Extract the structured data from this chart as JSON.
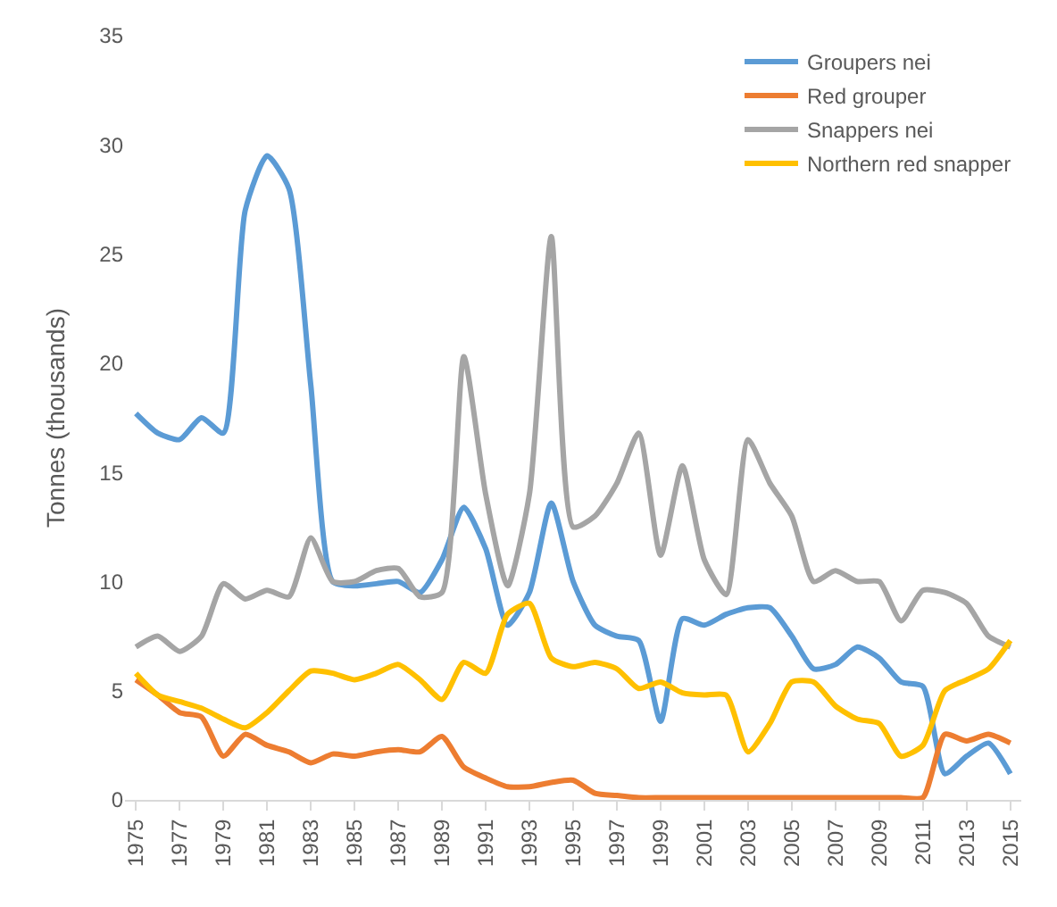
{
  "chart_data": {
    "type": "line",
    "ylabel": "Tonnes (thousands)",
    "x": [
      1975,
      1976,
      1977,
      1978,
      1979,
      1980,
      1981,
      1982,
      1983,
      1984,
      1985,
      1986,
      1987,
      1988,
      1989,
      1990,
      1991,
      1992,
      1993,
      1994,
      1995,
      1996,
      1997,
      1998,
      1999,
      2000,
      2001,
      2002,
      2003,
      2004,
      2005,
      2006,
      2007,
      2008,
      2009,
      2010,
      2011,
      2012,
      2013,
      2014,
      2015
    ],
    "series": [
      {
        "name": "Groupers nei",
        "color": "#5b9bd5",
        "values": [
          17.7,
          16.8,
          16.5,
          17.5,
          16.8,
          27,
          29.5,
          28,
          19,
          10,
          9.8,
          9.9,
          10,
          9.5,
          11,
          13.4,
          11.5,
          8,
          9.5,
          13.6,
          10,
          8,
          7.5,
          7.3,
          3.6,
          8.3,
          8,
          8.5,
          8.8,
          8.8,
          7.5,
          6,
          6.2,
          7,
          6.5,
          5.4,
          5.2,
          1.2,
          2,
          2.6,
          1.2
        ]
      },
      {
        "name": "Red grouper",
        "color": "#ed7d31",
        "values": [
          5.5,
          4.8,
          4,
          3.8,
          2,
          3,
          2.5,
          2.2,
          1.7,
          2.1,
          2,
          2.2,
          2.3,
          2.2,
          2.9,
          1.5,
          1,
          0.6,
          0.6,
          0.8,
          0.9,
          0.3,
          0.2,
          0.1,
          0.1,
          0.1,
          0.1,
          0.1,
          0.1,
          0.1,
          0.1,
          0.1,
          0.1,
          0.1,
          0.1,
          0.1,
          0.1,
          3,
          2.7,
          3,
          2.6
        ]
      },
      {
        "name": "Snappers nei",
        "color": "#a5a5a5",
        "values": [
          7,
          7.5,
          6.8,
          7.5,
          9.9,
          9.2,
          9.6,
          9.3,
          12,
          10,
          10,
          10.5,
          10.6,
          9.3,
          9.5,
          20.3,
          14,
          9.8,
          14,
          25.8,
          12.5,
          13,
          14.5,
          16.8,
          11.2,
          15.3,
          11,
          9.4,
          16.5,
          14.5,
          13,
          10,
          10.5,
          10,
          10,
          8.2,
          9.6,
          9.5,
          9,
          7.5,
          7
        ]
      },
      {
        "name": "Northern red snapper",
        "color": "#ffc000",
        "values": [
          5.8,
          4.8,
          4.5,
          4.2,
          3.7,
          3.3,
          4,
          5,
          5.9,
          5.8,
          5.5,
          5.8,
          6.2,
          5.5,
          4.6,
          6.3,
          5.8,
          8.5,
          9,
          6.5,
          6.1,
          6.3,
          6,
          5.1,
          5.4,
          4.9,
          4.8,
          4.8,
          2.2,
          3.5,
          5.4,
          5.4,
          4.3,
          3.7,
          3.5,
          2,
          2.5,
          5,
          5.5,
          6,
          7.3
        ]
      }
    ],
    "xlim": [
      1974.5,
      2015.5
    ],
    "xticks": [
      1975,
      1977,
      1979,
      1981,
      1983,
      1985,
      1987,
      1989,
      1991,
      1993,
      1995,
      1997,
      1999,
      2001,
      2003,
      2005,
      2007,
      2009,
      2011,
      2013,
      2015
    ],
    "ylim": [
      0,
      35
    ],
    "yticks": [
      0,
      5,
      10,
      15,
      20,
      25,
      30,
      35
    ],
    "grid": false,
    "legend": "top right",
    "marker": "none",
    "line_style": "solid"
  }
}
